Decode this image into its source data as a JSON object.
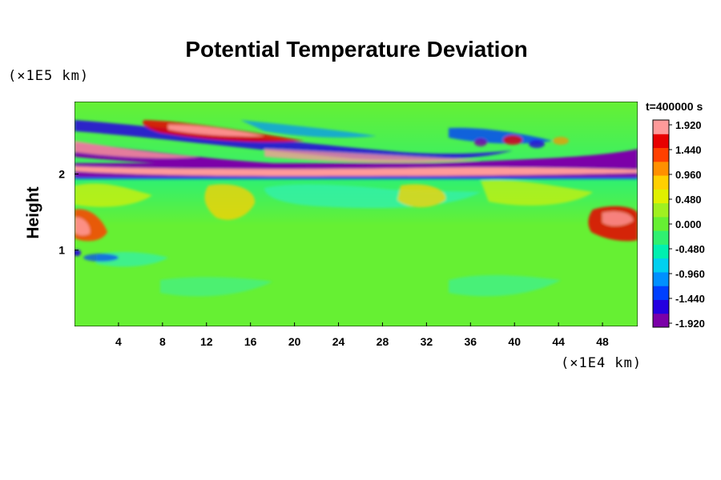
{
  "chart_data": {
    "type": "heatmap",
    "title": "Potential Temperature Deviation",
    "ylabel": "Height",
    "y_unit": "(×1E5 km)",
    "x_unit": "(×1E4 km)",
    "time_label": "t=400000 s",
    "xlim": [
      0,
      51.2
    ],
    "ylim": [
      0,
      2.95
    ],
    "x_ticks": [
      4,
      8,
      12,
      16,
      20,
      24,
      28,
      32,
      36,
      40,
      44,
      48
    ],
    "y_ticks": [
      1,
      2
    ],
    "colorbar": {
      "ticks": [
        "1.920",
        "1.440",
        "0.960",
        "0.480",
        "0.000",
        "-0.480",
        "-0.960",
        "-1.440",
        "-1.920"
      ],
      "vmin": -1.92,
      "vmax": 1.92,
      "colors": [
        "#7b00a8",
        "#2400e0",
        "#0040ff",
        "#0090ff",
        "#00d0f0",
        "#00f0b0",
        "#30f070",
        "#66f033",
        "#a0f020",
        "#e0f000",
        "#ffd000",
        "#ff9000",
        "#ff4000",
        "#e80000",
        "#ff9a9a"
      ]
    },
    "features": [
      {
        "x": [
          0,
          51.2
        ],
        "y": [
          1.95,
          2.05
        ],
        "value": -1.92
      },
      {
        "x": [
          0,
          51.2
        ],
        "y": [
          2.0,
          2.2
        ],
        "value": 1.92
      },
      {
        "x": [
          0,
          51.2
        ],
        "y": [
          2.2,
          2.7
        ],
        "value": -1.5
      },
      {
        "x": [
          8,
          18
        ],
        "y": [
          2.45,
          2.6
        ],
        "value": 1.6
      },
      {
        "x": [
          0,
          4
        ],
        "y": [
          1.1,
          1.4
        ],
        "value": 1.5
      },
      {
        "x": [
          47,
          51.2
        ],
        "y": [
          1.1,
          1.5
        ],
        "value": 1.7
      },
      {
        "x": [
          0,
          51.2
        ],
        "y": [
          1.4,
          1.95
        ],
        "value": 0.4
      },
      {
        "x": [
          0,
          51.2
        ],
        "y": [
          0,
          1.0
        ],
        "value": 0.05
      }
    ]
  }
}
